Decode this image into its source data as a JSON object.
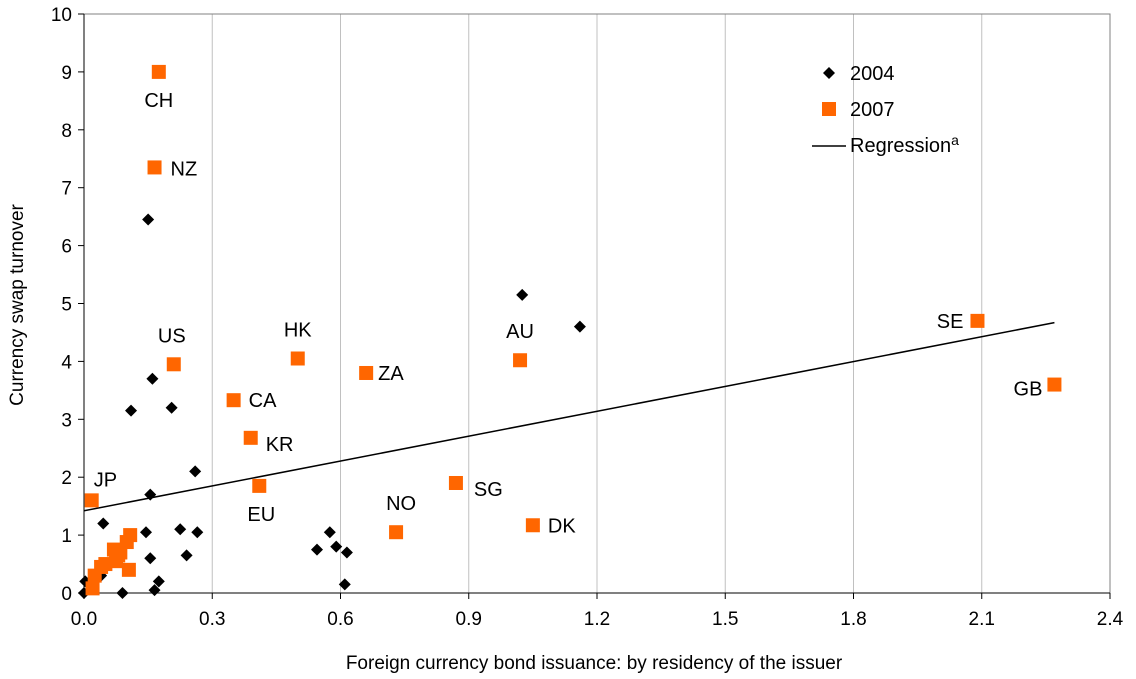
{
  "chart_data": {
    "type": "scatter",
    "xlabel": "Foreign currency bond issuance: by residency of the issuer",
    "ylabel": "Currency swap turnover",
    "xlim": [
      0,
      2.4
    ],
    "ylim": [
      0,
      10
    ],
    "xticks": [
      0.0,
      0.3,
      0.6,
      0.9,
      1.2,
      1.5,
      1.8,
      2.1,
      2.4
    ],
    "xtick_labels": [
      "0.0",
      "0.3",
      "0.6",
      "0.9",
      "1.2",
      "1.5",
      "1.8",
      "2.1",
      "2.4"
    ],
    "yticks": [
      0,
      1,
      2,
      3,
      4,
      5,
      6,
      7,
      8,
      9,
      10
    ],
    "ytick_labels": [
      "0",
      "1",
      "2",
      "3",
      "4",
      "5",
      "6",
      "7",
      "8",
      "9",
      "10"
    ],
    "grid": {
      "x": true,
      "y": false
    },
    "legend": {
      "position": "top-right",
      "entries": [
        {
          "label": "2004",
          "marker": "diamond"
        },
        {
          "label": "2007",
          "marker": "square"
        },
        {
          "label": "Regression",
          "superscript": "a",
          "marker": "line"
        }
      ]
    },
    "colors": {
      "2004": "#000000",
      "2007": "#ff6600",
      "regression": "#000000",
      "grid": "#c0c0c0"
    },
    "series": [
      {
        "name": "2004",
        "marker": "diamond",
        "points": [
          {
            "x": 0.0,
            "y": 0.0
          },
          {
            "x": 0.003,
            "y": 0.2
          },
          {
            "x": 0.02,
            "y": 0.15
          },
          {
            "x": 0.04,
            "y": 0.3
          },
          {
            "x": 0.045,
            "y": 1.2
          },
          {
            "x": 0.09,
            "y": 0.0
          },
          {
            "x": 0.11,
            "y": 3.15
          },
          {
            "x": 0.145,
            "y": 1.05
          },
          {
            "x": 0.15,
            "y": 6.45
          },
          {
            "x": 0.155,
            "y": 1.7
          },
          {
            "x": 0.155,
            "y": 0.6
          },
          {
            "x": 0.16,
            "y": 3.7
          },
          {
            "x": 0.165,
            "y": 0.05
          },
          {
            "x": 0.175,
            "y": 0.2
          },
          {
            "x": 0.205,
            "y": 3.2
          },
          {
            "x": 0.225,
            "y": 1.1
          },
          {
            "x": 0.24,
            "y": 0.65
          },
          {
            "x": 0.26,
            "y": 2.1
          },
          {
            "x": 0.265,
            "y": 1.05
          },
          {
            "x": 0.545,
            "y": 0.75
          },
          {
            "x": 0.575,
            "y": 1.05
          },
          {
            "x": 0.59,
            "y": 0.8
          },
          {
            "x": 0.61,
            "y": 0.15
          },
          {
            "x": 0.615,
            "y": 0.7
          },
          {
            "x": 1.025,
            "y": 5.15
          },
          {
            "x": 1.16,
            "y": 4.6
          }
        ]
      },
      {
        "name": "2007",
        "marker": "square",
        "points": [
          {
            "x": 0.018,
            "y": 1.6,
            "label": "JP"
          },
          {
            "x": 0.02,
            "y": 0.08
          },
          {
            "x": 0.025,
            "y": 0.3
          },
          {
            "x": 0.04,
            "y": 0.45
          },
          {
            "x": 0.05,
            "y": 0.5
          },
          {
            "x": 0.07,
            "y": 0.75
          },
          {
            "x": 0.075,
            "y": 0.55
          },
          {
            "x": 0.08,
            "y": 0.65
          },
          {
            "x": 0.085,
            "y": 0.7
          },
          {
            "x": 0.1,
            "y": 0.88
          },
          {
            "x": 0.105,
            "y": 0.4
          },
          {
            "x": 0.108,
            "y": 1.0
          },
          {
            "x": 0.165,
            "y": 7.35,
            "label": "NZ"
          },
          {
            "x": 0.175,
            "y": 9.0,
            "label": "CH"
          },
          {
            "x": 0.21,
            "y": 3.95,
            "label": "US"
          },
          {
            "x": 0.35,
            "y": 3.33,
            "label": "CA"
          },
          {
            "x": 0.39,
            "y": 2.68,
            "label": "KR"
          },
          {
            "x": 0.41,
            "y": 1.85,
            "label": "EU"
          },
          {
            "x": 0.5,
            "y": 4.05,
            "label": "HK"
          },
          {
            "x": 0.66,
            "y": 3.8,
            "label": "ZA"
          },
          {
            "x": 0.73,
            "y": 1.05,
            "label": "NO"
          },
          {
            "x": 0.87,
            "y": 1.9,
            "label": "SG"
          },
          {
            "x": 1.02,
            "y": 4.02,
            "label": "AU"
          },
          {
            "x": 1.05,
            "y": 1.17,
            "label": "DK"
          },
          {
            "x": 2.09,
            "y": 4.7,
            "label": "SE"
          },
          {
            "x": 2.27,
            "y": 3.6,
            "label": "GB"
          }
        ]
      }
    ],
    "regression": {
      "name": "Regression",
      "x1": 0.0,
      "y1": 1.42,
      "x2": 2.27,
      "y2": 4.67
    }
  }
}
